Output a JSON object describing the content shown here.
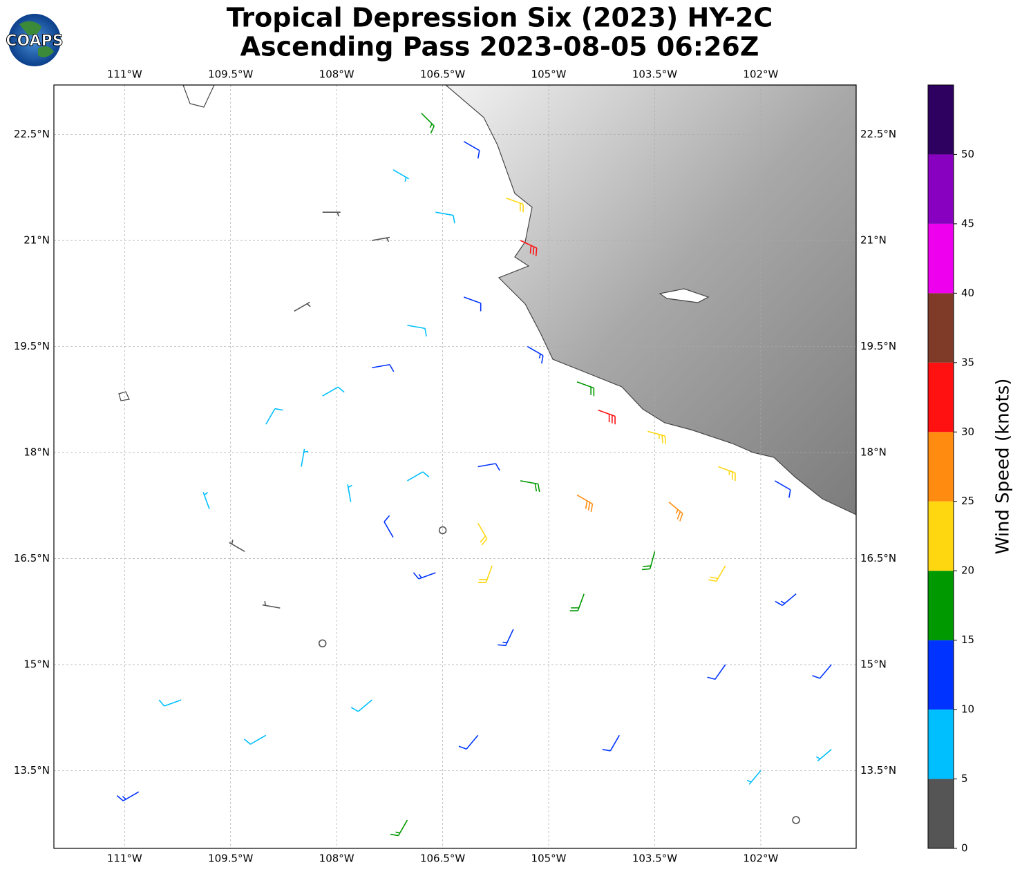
{
  "chart_data": {
    "type": "wind-barb-map",
    "title": [
      "Tropical Depression Six (2023) HY-2C",
      "Ascending Pass 2023-08-05 06:26Z"
    ],
    "logo_text": "COAPS",
    "xlim": [
      -112,
      -100.65
    ],
    "ylim": [
      12.4,
      23.2
    ],
    "xticks": [
      {
        "value": -111,
        "label": "111°W"
      },
      {
        "value": -109.5,
        "label": "109.5°W"
      },
      {
        "value": -108,
        "label": "108°W"
      },
      {
        "value": -106.5,
        "label": "106.5°W"
      },
      {
        "value": -105,
        "label": "105°W"
      },
      {
        "value": -103.5,
        "label": "103.5°W"
      },
      {
        "value": -102,
        "label": "102°W"
      }
    ],
    "yticks": [
      {
        "value": 13.5,
        "label": "13.5°N"
      },
      {
        "value": 15,
        "label": "15°N"
      },
      {
        "value": 16.5,
        "label": "16.5°N"
      },
      {
        "value": 18,
        "label": "18°N"
      },
      {
        "value": 19.5,
        "label": "19.5°N"
      },
      {
        "value": 21,
        "label": "21°N"
      },
      {
        "value": 22.5,
        "label": "22.5°N"
      }
    ],
    "grid": true,
    "colorbar": {
      "label": "Wind Speed (knots)",
      "bounds": [
        0,
        5,
        10,
        15,
        20,
        25,
        30,
        35,
        40,
        45,
        50,
        55
      ],
      "colors": [
        "#555555",
        "#00bfff",
        "#0033ff",
        "#009900",
        "#ffd711",
        "#ff8c11",
        "#ff1111",
        "#7f3b28",
        "#ee00ee",
        "#8800c0",
        "#2e0060"
      ],
      "ticks": [
        0,
        5,
        10,
        15,
        20,
        25,
        30,
        35,
        40,
        45,
        50
      ]
    },
    "barbs": [
      {
        "lon": -106.8,
        "lat": 22.8,
        "speed": 17,
        "dir": 135
      },
      {
        "lon": -106.2,
        "lat": 22.4,
        "speed": 12,
        "dir": 120
      },
      {
        "lon": -105.6,
        "lat": 21.6,
        "speed": 22,
        "dir": 110
      },
      {
        "lon": -105.4,
        "lat": 21.0,
        "speed": 32,
        "dir": 115
      },
      {
        "lon": -106.6,
        "lat": 21.4,
        "speed": 8,
        "dir": 100
      },
      {
        "lon": -107.5,
        "lat": 21.0,
        "speed": 3,
        "dir": 80
      },
      {
        "lon": -107.2,
        "lat": 22.0,
        "speed": 7,
        "dir": 120
      },
      {
        "lon": -106.2,
        "lat": 20.2,
        "speed": 12,
        "dir": 110
      },
      {
        "lon": -107.0,
        "lat": 19.8,
        "speed": 8,
        "dir": 100
      },
      {
        "lon": -105.3,
        "lat": 19.5,
        "speed": 13,
        "dir": 120
      },
      {
        "lon": -104.6,
        "lat": 19.0,
        "speed": 18,
        "dir": 110
      },
      {
        "lon": -104.3,
        "lat": 18.6,
        "speed": 32,
        "dir": 110
      },
      {
        "lon": -103.6,
        "lat": 18.3,
        "speed": 24,
        "dir": 105
      },
      {
        "lon": -102.6,
        "lat": 17.8,
        "speed": 23,
        "dir": 110
      },
      {
        "lon": -101.8,
        "lat": 17.6,
        "speed": 10,
        "dir": 120
      },
      {
        "lon": -103.3,
        "lat": 17.3,
        "speed": 25,
        "dir": 130
      },
      {
        "lon": -104.6,
        "lat": 17.4,
        "speed": 28,
        "dir": 120
      },
      {
        "lon": -105.4,
        "lat": 17.6,
        "speed": 18,
        "dir": 100
      },
      {
        "lon": -106.0,
        "lat": 17.8,
        "speed": 12,
        "dir": 80
      },
      {
        "lon": -107.0,
        "lat": 17.6,
        "speed": 8,
        "dir": 60
      },
      {
        "lon": -106.5,
        "lat": 16.9,
        "speed": 2,
        "dir": 0
      },
      {
        "lon": -106.0,
        "lat": 17.0,
        "speed": 20,
        "dir": 150
      },
      {
        "lon": -105.8,
        "lat": 16.4,
        "speed": 22,
        "dir": 200
      },
      {
        "lon": -106.6,
        "lat": 16.3,
        "speed": 14,
        "dir": 250
      },
      {
        "lon": -107.2,
        "lat": 16.8,
        "speed": 12,
        "dir": 330
      },
      {
        "lon": -107.8,
        "lat": 17.3,
        "speed": 6,
        "dir": 350
      },
      {
        "lon": -108.5,
        "lat": 17.8,
        "speed": 5,
        "dir": 10
      },
      {
        "lon": -109.0,
        "lat": 18.4,
        "speed": 8,
        "dir": 30
      },
      {
        "lon": -108.2,
        "lat": 18.8,
        "speed": 9,
        "dir": 60
      },
      {
        "lon": -107.5,
        "lat": 19.2,
        "speed": 11,
        "dir": 80
      },
      {
        "lon": -109.3,
        "lat": 16.6,
        "speed": 3,
        "dir": 300
      },
      {
        "lon": -108.8,
        "lat": 15.8,
        "speed": 4,
        "dir": 280
      },
      {
        "lon": -108.2,
        "lat": 15.3,
        "speed": 2,
        "dir": 0
      },
      {
        "lon": -110.2,
        "lat": 14.5,
        "speed": 9,
        "dir": 250
      },
      {
        "lon": -110.8,
        "lat": 13.2,
        "speed": 13,
        "dir": 240
      },
      {
        "lon": -109.0,
        "lat": 14.0,
        "speed": 8,
        "dir": 240
      },
      {
        "lon": -107.5,
        "lat": 14.5,
        "speed": 9,
        "dir": 230
      },
      {
        "lon": -106.0,
        "lat": 14.0,
        "speed": 12,
        "dir": 220
      },
      {
        "lon": -107.0,
        "lat": 12.8,
        "speed": 17,
        "dir": 210
      },
      {
        "lon": -105.5,
        "lat": 15.5,
        "speed": 14,
        "dir": 205
      },
      {
        "lon": -104.5,
        "lat": 16.0,
        "speed": 19,
        "dir": 200
      },
      {
        "lon": -103.5,
        "lat": 16.6,
        "speed": 18,
        "dir": 195
      },
      {
        "lon": -102.5,
        "lat": 16.4,
        "speed": 20,
        "dir": 210
      },
      {
        "lon": -101.5,
        "lat": 16.0,
        "speed": 13,
        "dir": 230
      },
      {
        "lon": -101.0,
        "lat": 15.0,
        "speed": 12,
        "dir": 220
      },
      {
        "lon": -102.5,
        "lat": 15.0,
        "speed": 12,
        "dir": 215
      },
      {
        "lon": -104.0,
        "lat": 14.0,
        "speed": 11,
        "dir": 210
      },
      {
        "lon": -102.0,
        "lat": 13.5,
        "speed": 7,
        "dir": 220
      },
      {
        "lon": -101.5,
        "lat": 12.8,
        "speed": 2,
        "dir": 0
      },
      {
        "lon": -101.0,
        "lat": 13.8,
        "speed": 6,
        "dir": 230
      },
      {
        "lon": -109.8,
        "lat": 17.2,
        "speed": 7,
        "dir": 340
      },
      {
        "lon": -108.6,
        "lat": 20.0,
        "speed": 3,
        "dir": 60
      },
      {
        "lon": -108.2,
        "lat": 21.4,
        "speed": 4,
        "dir": 90
      }
    ]
  }
}
